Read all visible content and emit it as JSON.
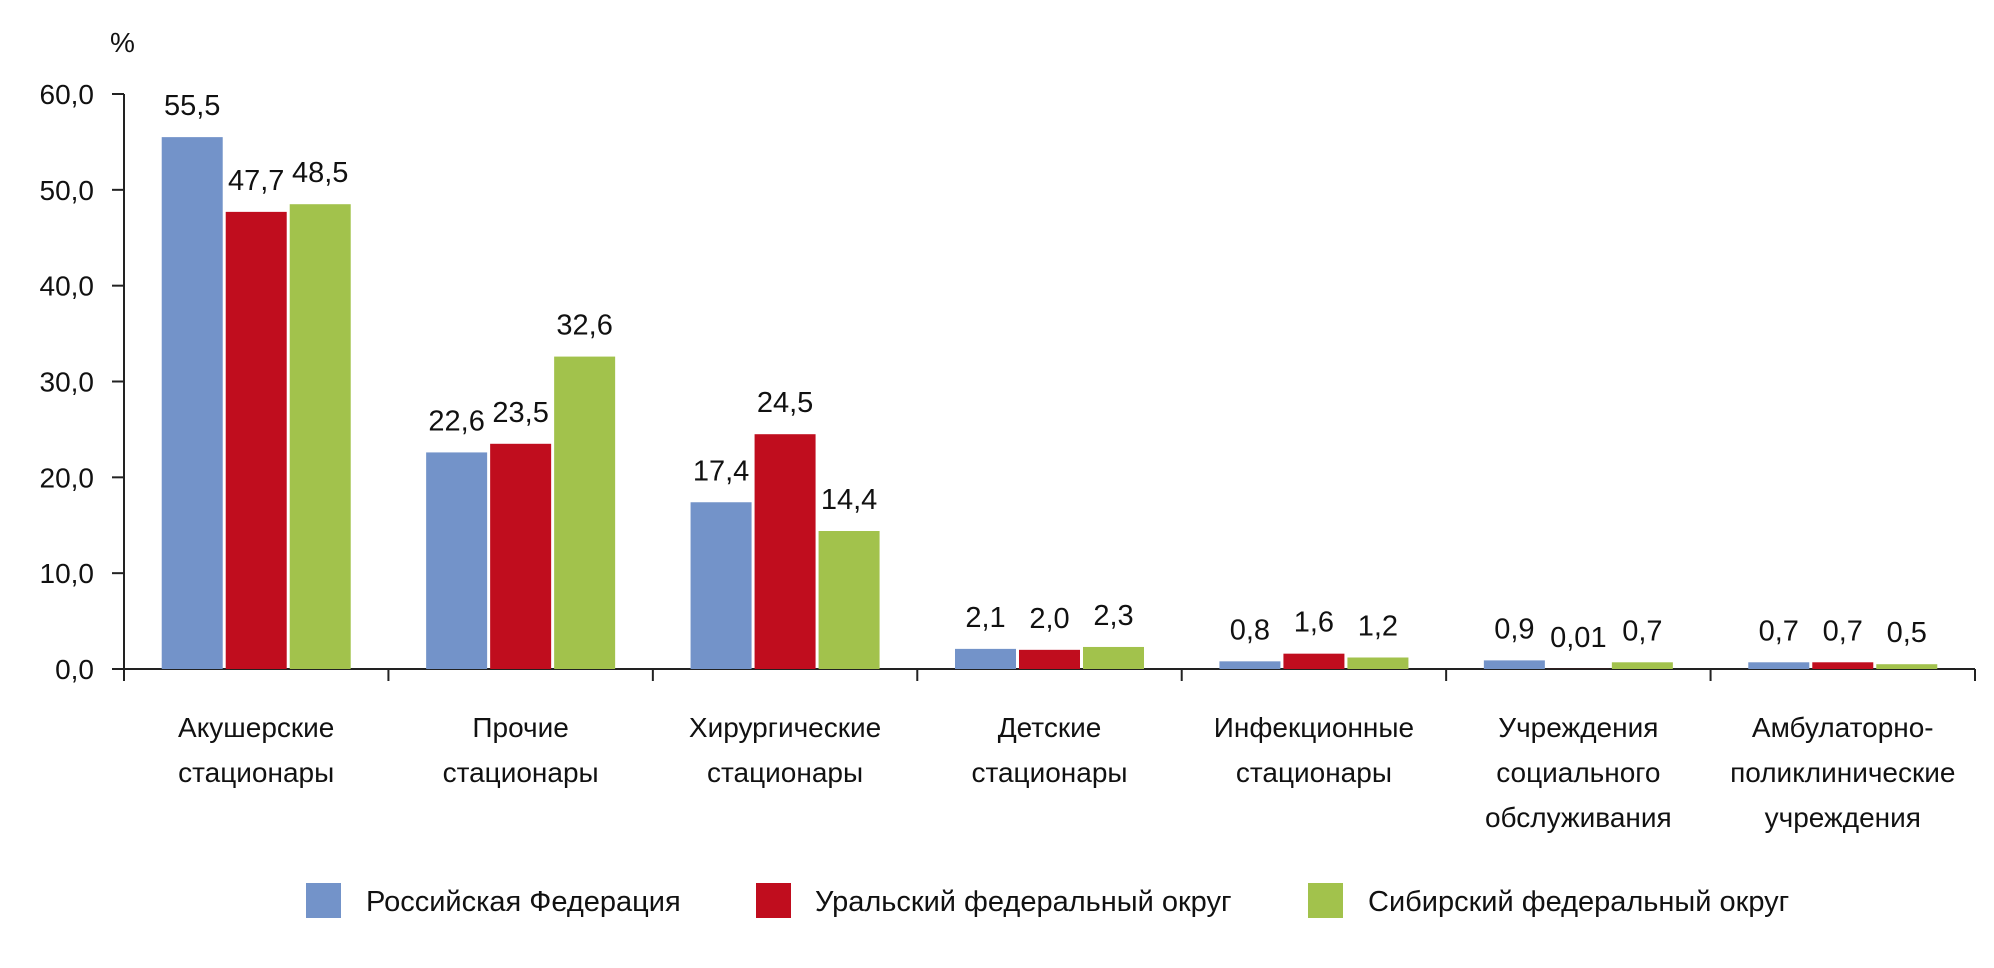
{
  "chart_data": {
    "type": "bar",
    "ylabel": "%",
    "ylim": [
      0,
      60
    ],
    "yticks": [
      "0,0",
      "10,0",
      "20,0",
      "30,0",
      "40,0",
      "50,0",
      "60,0"
    ],
    "yticks_values": [
      0,
      10,
      20,
      30,
      40,
      50,
      60
    ],
    "grid": false,
    "legend_position": "bottom",
    "categories": [
      [
        "Акушерские",
        "стационары"
      ],
      [
        "Прочие",
        "стационары"
      ],
      [
        "Хирургические",
        "стационары"
      ],
      [
        "Детские",
        "стационары"
      ],
      [
        "Инфекционные",
        "стационары"
      ],
      [
        "Учреждения",
        "социального",
        "обслуживания"
      ],
      [
        "Амбулаторно-",
        "поликлинические",
        "учреждения"
      ]
    ],
    "series": [
      {
        "name": "Российская Федерация",
        "color": "#7393c9",
        "values": [
          55.5,
          22.6,
          17.4,
          2.1,
          0.8,
          0.9,
          0.7
        ],
        "labels": [
          "55,5",
          "22,6",
          "17,4",
          "2,1",
          "0,8",
          "0,9",
          "0,7"
        ]
      },
      {
        "name": "Уральский федеральный округ",
        "color": "#c00d1e",
        "values": [
          47.7,
          23.5,
          24.5,
          2.0,
          1.6,
          0.01,
          0.7
        ],
        "labels": [
          "47,7",
          "23,5",
          "24,5",
          "2,0",
          "1,6",
          "0,01",
          "0,7"
        ]
      },
      {
        "name": "Сибирский федеральный округ",
        "color": "#a2c24c",
        "values": [
          48.5,
          32.6,
          14.4,
          2.3,
          1.2,
          0.7,
          0.5
        ],
        "labels": [
          "48,5",
          "32,6",
          "14,4",
          "2,3",
          "1,2",
          "0,7",
          "0,5"
        ]
      }
    ]
  }
}
